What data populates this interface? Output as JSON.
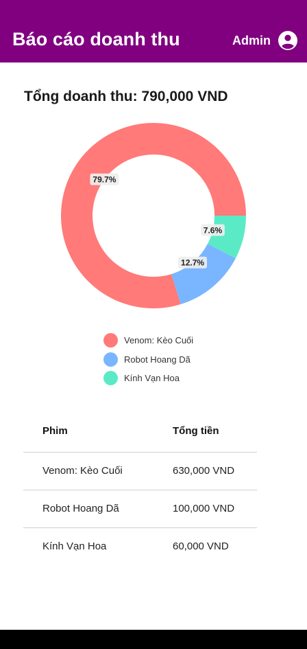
{
  "appbar": {
    "title": "Báo cáo doanh thu",
    "user_label": "Admin",
    "user_icon": "account-circle-icon",
    "background": "#800080"
  },
  "summary": {
    "total_text": "Tổng doanh thu: 790,000 VND"
  },
  "chart_data": {
    "type": "pie",
    "donut": true,
    "categories": [
      "Venom: Kèo Cuối",
      "Robot Hoang Dã",
      "Kính Vạn Hoa"
    ],
    "values": [
      630000,
      100000,
      60000
    ],
    "percent_labels": [
      "79.7%",
      "12.7%",
      "7.6%"
    ],
    "colors": [
      "#FF7A78",
      "#7AB6FF",
      "#5AEBC6"
    ],
    "legend_position": "bottom"
  },
  "table": {
    "headers": [
      "Phim",
      "Tổng tiền"
    ],
    "rows": [
      [
        "Venom: Kèo Cuối",
        "630,000 VND"
      ],
      [
        "Robot Hoang Dã",
        "100,000 VND"
      ],
      [
        "Kính Vạn Hoa",
        "60,000 VND"
      ]
    ]
  }
}
